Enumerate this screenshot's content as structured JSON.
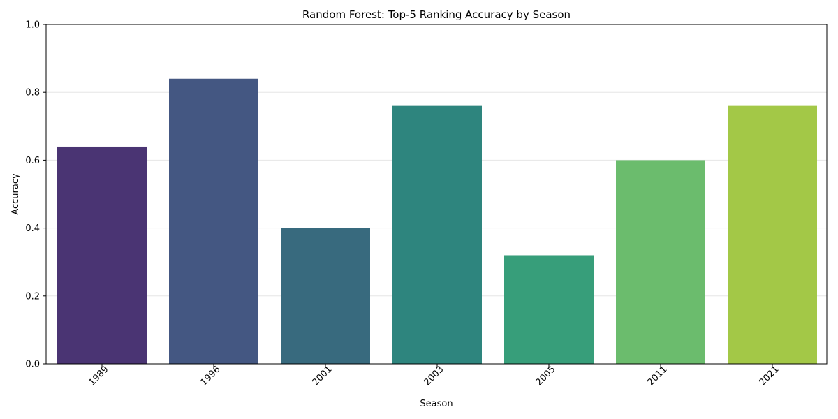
{
  "chart_data": {
    "type": "bar",
    "title": "Random Forest: Top-5 Ranking Accuracy by Season",
    "xlabel": "Season",
    "ylabel": "Accuracy",
    "categories": [
      "1989",
      "1996",
      "2001",
      "2003",
      "2005",
      "2011",
      "2021"
    ],
    "values": [
      0.64,
      0.84,
      0.4,
      0.76,
      0.32,
      0.6,
      0.76
    ],
    "colors": [
      "#4a3473",
      "#445782",
      "#386a7e",
      "#2e857e",
      "#379e7a",
      "#6bbc6d",
      "#a3c847"
    ],
    "ylim": [
      0,
      1.0
    ],
    "yticks": [
      "0.0",
      "0.2",
      "0.4",
      "0.6",
      "0.8",
      "1.0"
    ],
    "grid": "y",
    "legend": "none"
  }
}
